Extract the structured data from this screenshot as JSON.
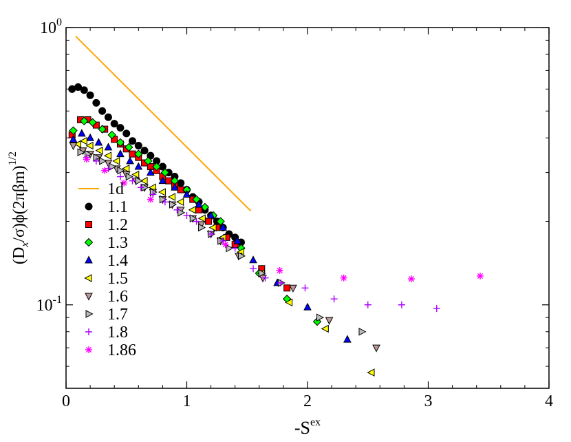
{
  "chart_data": {
    "type": "scatter",
    "title": "",
    "xlabel": "-S",
    "xlabel_sup": "ex",
    "ylabel": "(D",
    "ylabel_sub": "x",
    "ylabel_rest": "/σ)ϕ(2πβm)",
    "ylabel_sup": "1/2",
    "x_scale": "linear",
    "y_scale": "log",
    "xlim": [
      0,
      4
    ],
    "ylim": [
      0.05,
      1.0
    ],
    "x_ticks": [
      0,
      1,
      2,
      3,
      4
    ],
    "x_tick_labels": [
      "0",
      "1",
      "2",
      "3",
      "4"
    ],
    "y_tick_labels": [
      {
        "value": 1.0,
        "base": "10",
        "exp": "0"
      },
      {
        "value": 0.1,
        "base": "10",
        "exp": "-1"
      }
    ],
    "grid": false,
    "legend_position": "left",
    "series": [
      {
        "name": "1d",
        "kind": "line",
        "color": "#ffa500",
        "x": [
          0.08,
          1.53
        ],
        "y": [
          0.93,
          0.218
        ]
      },
      {
        "name": "1.1",
        "marker": "circle",
        "color": "#000000",
        "x": [
          0.05,
          0.1,
          0.15,
          0.2,
          0.25,
          0.3,
          0.35,
          0.4,
          0.45,
          0.5,
          0.55,
          0.6,
          0.65,
          0.7,
          0.75,
          0.8,
          0.85,
          0.9,
          0.95,
          1.0,
          1.05,
          1.1,
          1.15,
          1.2,
          1.25,
          1.3,
          1.35,
          1.4,
          1.45
        ],
        "y": [
          0.6,
          0.61,
          0.595,
          0.57,
          0.535,
          0.5,
          0.475,
          0.45,
          0.435,
          0.415,
          0.39,
          0.375,
          0.36,
          0.345,
          0.33,
          0.315,
          0.3,
          0.29,
          0.275,
          0.26,
          0.245,
          0.235,
          0.22,
          0.21,
          0.2,
          0.19,
          0.18,
          0.175,
          0.168
        ]
      },
      {
        "name": "1.2",
        "marker": "square",
        "color": "#ff0000",
        "x": [
          0.05,
          0.12,
          0.18,
          0.25,
          0.32,
          0.4,
          0.45,
          0.5,
          0.55,
          0.6,
          0.65,
          0.7,
          0.75,
          0.8,
          0.85,
          0.9,
          0.95,
          1.05,
          1.1,
          1.18,
          1.25,
          1.33,
          1.4,
          1.62,
          1.83
        ],
        "y": [
          0.41,
          0.465,
          0.465,
          0.445,
          0.43,
          0.395,
          0.38,
          0.365,
          0.35,
          0.34,
          0.325,
          0.315,
          0.305,
          0.29,
          0.28,
          0.27,
          0.26,
          0.24,
          0.22,
          0.2,
          0.19,
          0.175,
          0.165,
          0.135,
          0.115
        ]
      },
      {
        "name": "1.3",
        "marker": "diamond",
        "color": "#00ff00",
        "x": [
          0.06,
          0.15,
          0.22,
          0.3,
          0.38,
          0.45,
          0.52,
          0.6,
          0.68,
          0.75,
          0.82,
          0.9,
          1.0,
          1.08,
          1.15,
          1.22,
          1.28,
          1.45,
          1.6,
          1.83,
          2.08
        ],
        "y": [
          0.425,
          0.46,
          0.455,
          0.43,
          0.41,
          0.385,
          0.37,
          0.35,
          0.33,
          0.315,
          0.3,
          0.28,
          0.26,
          0.24,
          0.225,
          0.21,
          0.2,
          0.16,
          0.13,
          0.105,
          0.087
        ]
      },
      {
        "name": "1.4",
        "marker": "triangle-up",
        "color": "#0000ff",
        "x": [
          0.06,
          0.13,
          0.2,
          0.27,
          0.35,
          0.45,
          0.53,
          0.6,
          0.7,
          0.8,
          0.9,
          1.0,
          1.1,
          1.2,
          1.3,
          1.42,
          1.55,
          1.75,
          2.0,
          2.33
        ],
        "y": [
          0.395,
          0.415,
          0.4,
          0.385,
          0.37,
          0.35,
          0.33,
          0.315,
          0.3,
          0.28,
          0.265,
          0.25,
          0.23,
          0.21,
          0.19,
          0.17,
          0.145,
          0.12,
          0.098,
          0.075
        ]
      },
      {
        "name": "1.5",
        "marker": "triangle-left",
        "color": "#ffff00",
        "x": [
          0.1,
          0.15,
          0.2,
          0.28,
          0.35,
          0.42,
          0.5,
          0.58,
          0.65,
          0.72,
          0.8,
          0.88,
          0.95,
          1.05,
          1.13,
          1.22,
          1.3,
          1.45,
          1.62,
          1.85,
          2.15,
          2.53
        ],
        "y": [
          0.38,
          0.39,
          0.375,
          0.36,
          0.345,
          0.33,
          0.31,
          0.295,
          0.28,
          0.265,
          0.255,
          0.245,
          0.235,
          0.22,
          0.205,
          0.19,
          0.175,
          0.155,
          0.13,
          0.102,
          0.082,
          0.057
        ]
      },
      {
        "name": "1.6",
        "marker": "triangle-down",
        "color": "#bb9999",
        "x": [
          0.06,
          0.14,
          0.2,
          0.27,
          0.35,
          0.42,
          0.5,
          0.58,
          0.65,
          0.72,
          0.8,
          0.88,
          0.95,
          1.05,
          1.12,
          1.2,
          1.28,
          1.43,
          1.63,
          1.88,
          2.18,
          2.57
        ],
        "y": [
          0.375,
          0.36,
          0.35,
          0.34,
          0.325,
          0.31,
          0.295,
          0.28,
          0.265,
          0.255,
          0.24,
          0.23,
          0.22,
          0.205,
          0.195,
          0.18,
          0.17,
          0.15,
          0.125,
          0.115,
          0.088,
          0.07
        ]
      },
      {
        "name": "1.7",
        "marker": "triangle-right",
        "color": "#bbbbbb",
        "x": [
          0.12,
          0.18,
          0.25,
          0.3,
          0.38,
          0.45,
          0.52,
          0.6,
          0.65,
          0.72,
          0.8,
          0.88,
          0.95,
          1.05,
          1.12,
          1.2,
          1.28,
          1.35,
          1.45,
          1.62,
          1.78,
          2.1,
          2.45
        ],
        "y": [
          0.355,
          0.35,
          0.34,
          0.33,
          0.315,
          0.305,
          0.29,
          0.28,
          0.265,
          0.255,
          0.24,
          0.23,
          0.215,
          0.205,
          0.19,
          0.18,
          0.17,
          0.16,
          0.15,
          0.13,
          0.12,
          0.09,
          0.08
        ]
      },
      {
        "name": "1.8",
        "marker": "plus",
        "color": "#aa00ff",
        "x": [
          0.17,
          0.25,
          0.35,
          0.45,
          0.55,
          0.62,
          0.72,
          0.82,
          0.92,
          1.0,
          1.08,
          1.2,
          1.3,
          1.4,
          1.55,
          1.65,
          1.78,
          1.98,
          2.22,
          2.5,
          2.78,
          3.07
        ],
        "y": [
          0.34,
          0.33,
          0.31,
          0.29,
          0.28,
          0.265,
          0.25,
          0.235,
          0.22,
          0.21,
          0.2,
          0.18,
          0.17,
          0.16,
          0.135,
          0.125,
          0.12,
          0.115,
          0.105,
          0.1,
          0.1,
          0.097
        ]
      },
      {
        "name": "1.86",
        "marker": "asterisk",
        "color": "#ff00ff",
        "x": [
          0.17,
          0.32,
          0.48,
          0.7,
          1.32,
          1.77,
          2.3,
          2.86,
          3.43
        ],
        "y": [
          0.335,
          0.305,
          0.275,
          0.24,
          0.165,
          0.133,
          0.125,
          0.124,
          0.127
        ]
      }
    ]
  }
}
